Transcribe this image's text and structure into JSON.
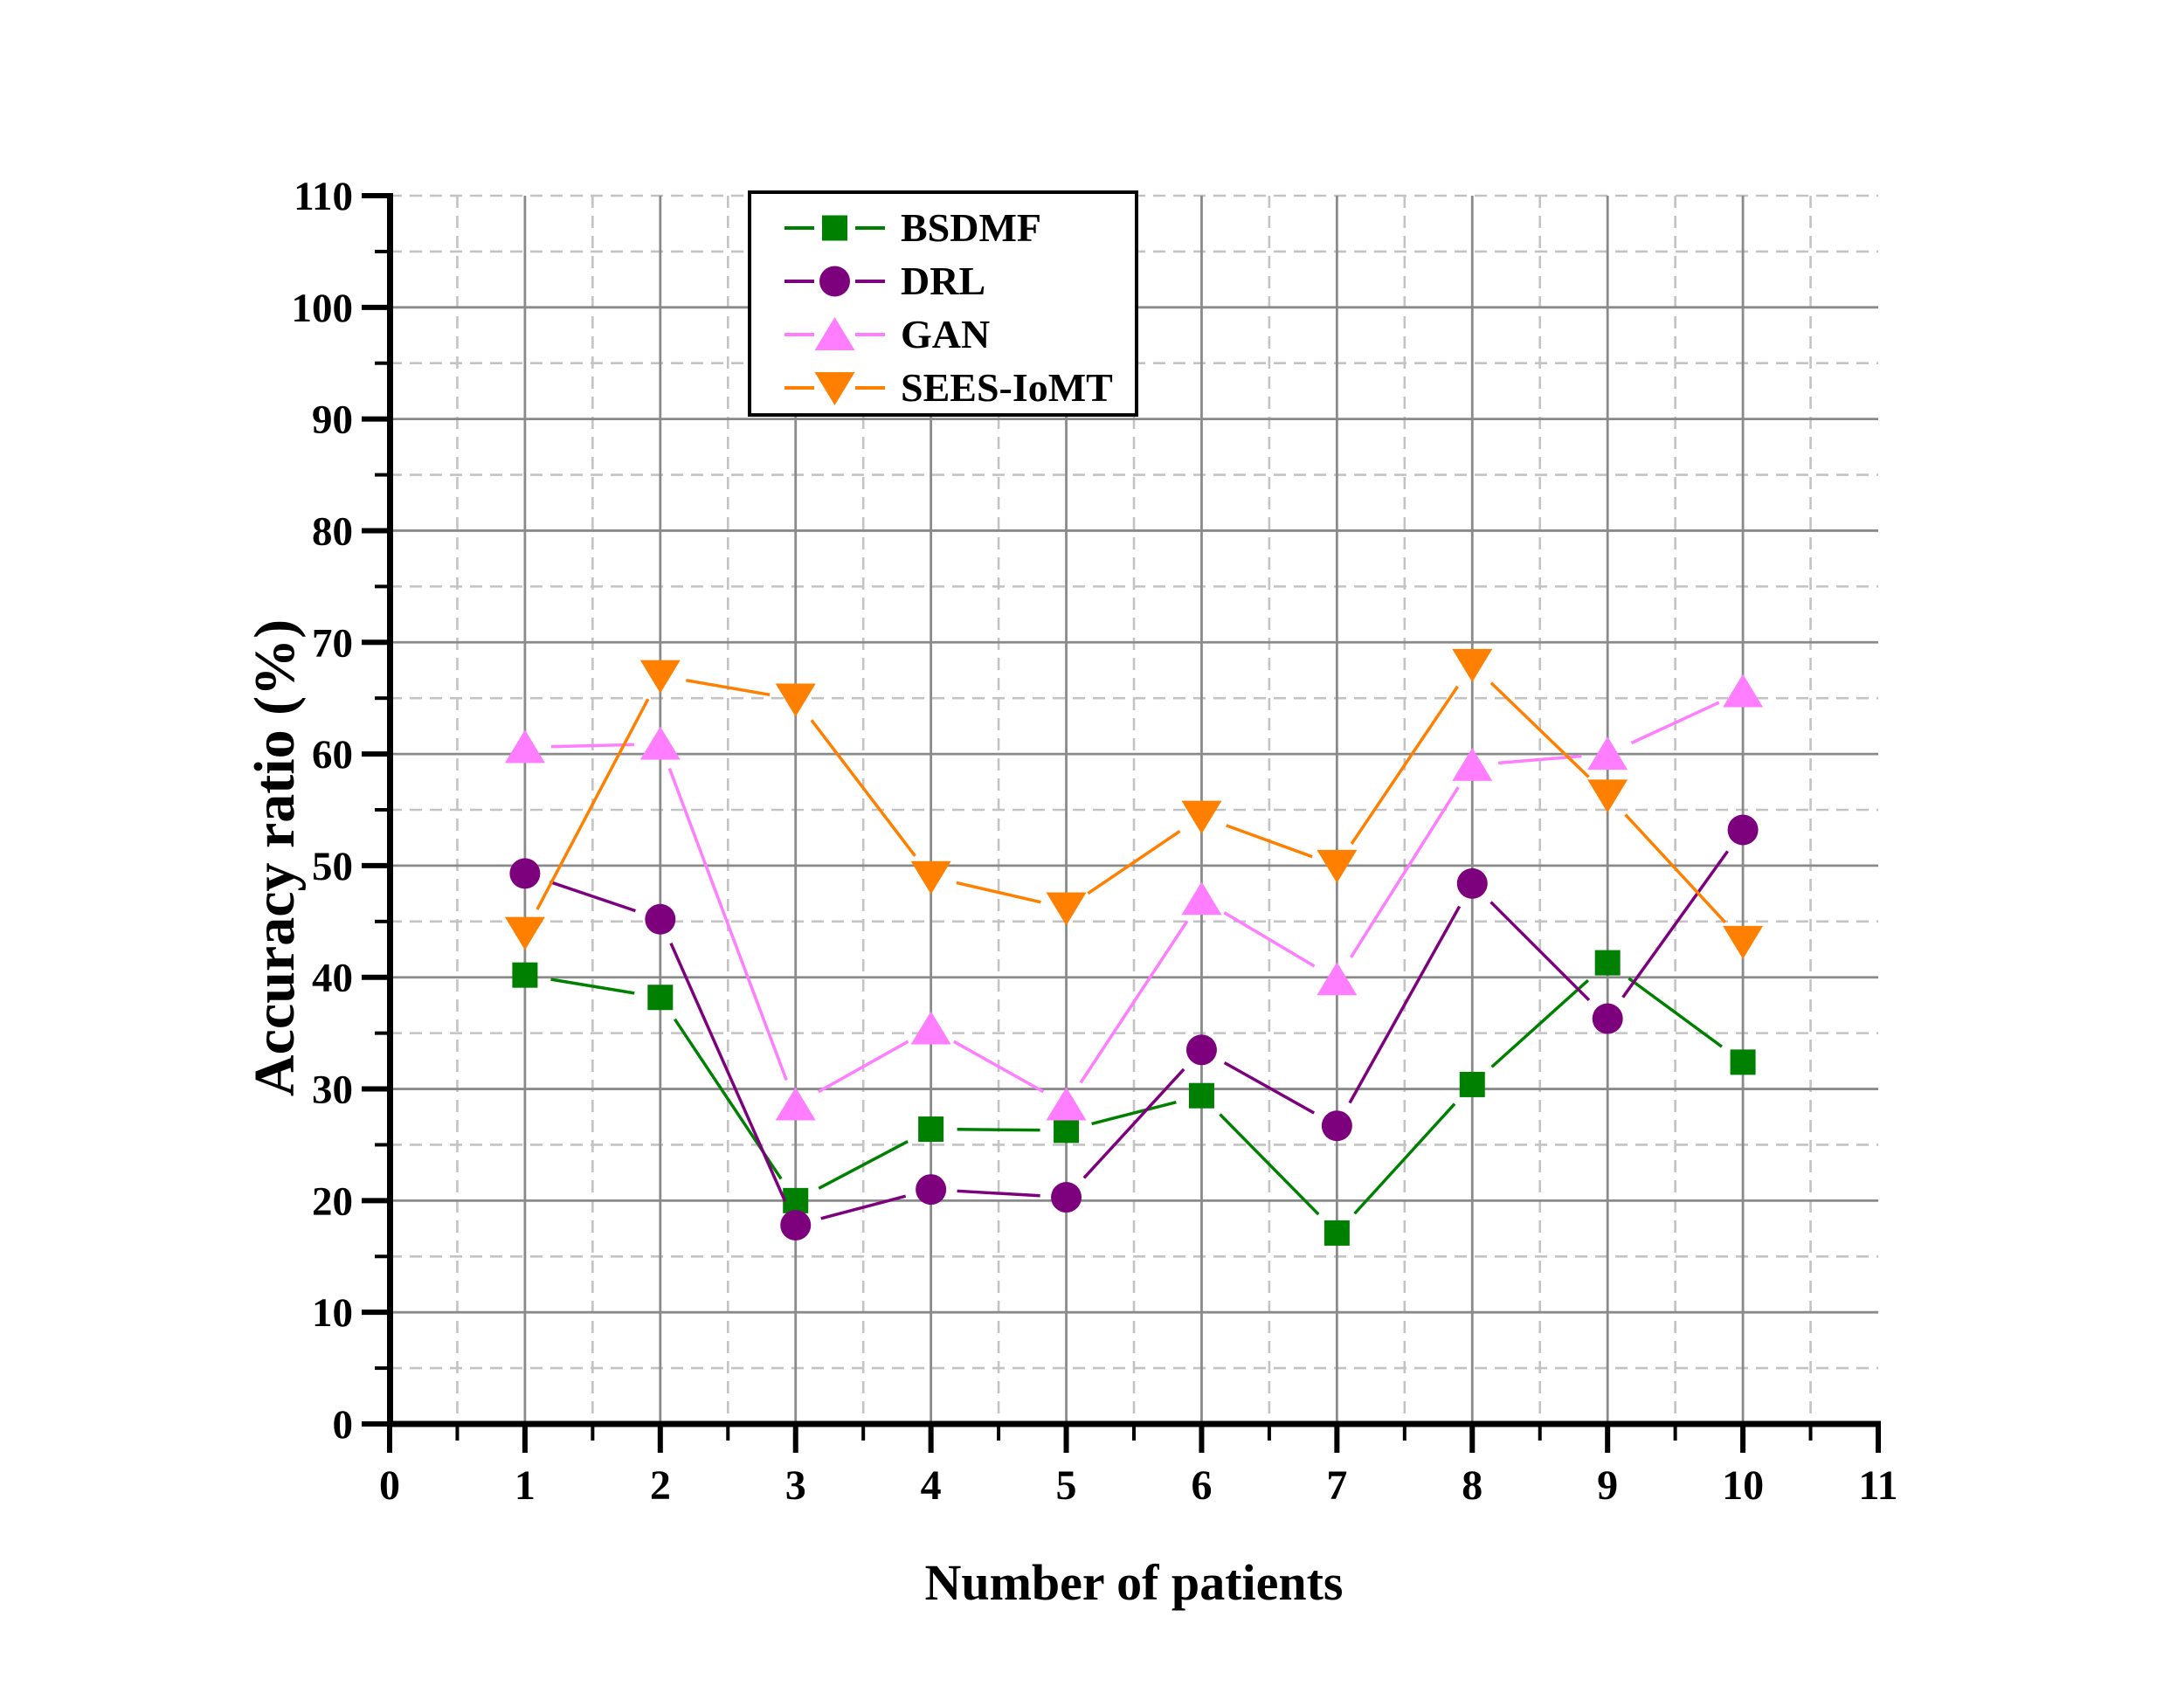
{
  "figure": {
    "background": "#ffffff"
  },
  "chart_data": {
    "type": "line",
    "title": "",
    "xlabel": "Number of patients",
    "ylabel": "Accuracy ratio (%)",
    "xlim": [
      0,
      11
    ],
    "ylim": [
      0,
      110
    ],
    "x_major_ticks": [
      0,
      1,
      2,
      3,
      4,
      5,
      6,
      7,
      8,
      9,
      10,
      11
    ],
    "y_major_ticks": [
      0,
      10,
      20,
      30,
      40,
      50,
      60,
      70,
      80,
      90,
      100,
      110
    ],
    "x_minor_tick_step": 0.5,
    "y_minor_tick_step": 5,
    "grid": {
      "major_color": "#8a8a8a",
      "minor_color": "#c3c3c3",
      "minor_style": "dashed",
      "extra_minor_y_line": 110
    },
    "x": [
      1,
      2,
      3,
      4,
      5,
      6,
      7,
      8,
      9,
      10
    ],
    "series": [
      {
        "name": "BSDMF",
        "color": "#008000",
        "marker": "square",
        "values": [
          40.2,
          38.2,
          20.0,
          26.4,
          26.3,
          29.4,
          17.1,
          30.4,
          41.3,
          32.4
        ]
      },
      {
        "name": "DRL",
        "color": "#7d007d",
        "marker": "circle",
        "values": [
          49.3,
          45.2,
          17.8,
          21.0,
          20.3,
          33.5,
          26.7,
          48.4,
          36.3,
          53.2
        ]
      },
      {
        "name": "GAN",
        "color": "#ff7dff",
        "marker": "triangle-up",
        "values": [
          60.6,
          60.9,
          28.6,
          35.4,
          28.6,
          47.0,
          39.8,
          59.0,
          60.0,
          65.6
        ]
      },
      {
        "name": "SEES-IoMT",
        "color": "#ff8000",
        "marker": "triangle-down",
        "values": [
          44.0,
          67.0,
          64.9,
          49.0,
          46.2,
          54.4,
          50.0,
          68.0,
          56.3,
          43.2
        ]
      }
    ],
    "legend": {
      "position": "top-inside",
      "border_color": "#000000",
      "background": "#ffffff",
      "entries": [
        "BSDMF",
        "DRL",
        "GAN",
        "SEES-IoMT"
      ]
    },
    "axis_color": "#000000"
  }
}
